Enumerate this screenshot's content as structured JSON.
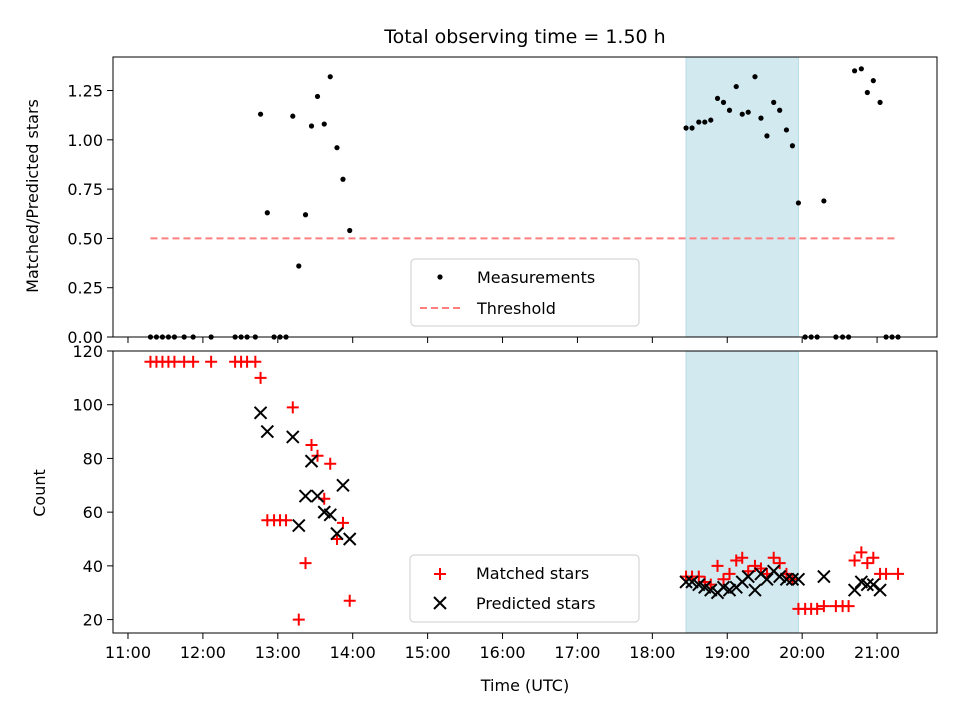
{
  "chart_data": {
    "type": "scatter",
    "title": "Total observing time = 1.50 h",
    "xlabel": "Time (UTC)",
    "x_ticks": [
      "11:00",
      "12:00",
      "13:00",
      "14:00",
      "15:00",
      "16:00",
      "17:00",
      "18:00",
      "19:00",
      "20:00",
      "21:00"
    ],
    "x_range_hours": [
      10.8,
      21.8
    ],
    "highlight_span_hours": [
      18.45,
      19.95
    ],
    "colors": {
      "highlight": "#d2e9f0",
      "matched": "#ff0000",
      "predicted": "#000000",
      "threshold": "#ff7f7f",
      "measurement": "#000000"
    },
    "top": {
      "ylabel": "Matched/Predicted stars",
      "ylim": [
        0,
        1.42
      ],
      "y_ticks": [
        "0.00",
        "0.25",
        "0.50",
        "0.75",
        "1.00",
        "1.25"
      ],
      "threshold": {
        "value": 0.5,
        "x_range_hours": [
          11.3,
          21.28
        ]
      },
      "legend": {
        "measurements": "Measurements",
        "threshold": "Threshold",
        "placement": "lower center"
      },
      "measurements": [
        [
          11.3,
          0
        ],
        [
          11.38,
          0
        ],
        [
          11.46,
          0
        ],
        [
          11.54,
          0
        ],
        [
          11.62,
          0
        ],
        [
          11.75,
          0
        ],
        [
          11.87,
          0
        ],
        [
          12.11,
          0
        ],
        [
          12.43,
          0
        ],
        [
          12.51,
          0
        ],
        [
          12.59,
          0
        ],
        [
          12.7,
          0
        ],
        [
          12.77,
          1.13
        ],
        [
          12.86,
          0.63
        ],
        [
          12.95,
          0
        ],
        [
          13.03,
          0
        ],
        [
          13.11,
          0
        ],
        [
          13.2,
          1.12
        ],
        [
          13.28,
          0.36
        ],
        [
          13.37,
          0.62
        ],
        [
          13.45,
          1.07
        ],
        [
          13.53,
          1.22
        ],
        [
          13.62,
          1.08
        ],
        [
          13.7,
          1.32
        ],
        [
          13.79,
          0.96
        ],
        [
          13.87,
          0.8
        ],
        [
          13.96,
          0.54
        ],
        [
          18.45,
          1.06
        ],
        [
          18.53,
          1.06
        ],
        [
          18.62,
          1.09
        ],
        [
          18.7,
          1.09
        ],
        [
          18.78,
          1.1
        ],
        [
          18.87,
          1.21
        ],
        [
          18.95,
          1.19
        ],
        [
          19.03,
          1.15
        ],
        [
          19.12,
          1.27
        ],
        [
          19.2,
          1.13
        ],
        [
          19.28,
          1.14
        ],
        [
          19.37,
          1.32
        ],
        [
          19.45,
          1.11
        ],
        [
          19.53,
          1.02
        ],
        [
          19.62,
          1.19
        ],
        [
          19.7,
          1.15
        ],
        [
          19.79,
          1.05
        ],
        [
          19.87,
          0.97
        ],
        [
          19.95,
          0.68
        ],
        [
          20.04,
          0
        ],
        [
          20.12,
          0
        ],
        [
          20.2,
          0
        ],
        [
          20.29,
          0.69
        ],
        [
          20.45,
          0
        ],
        [
          20.54,
          0
        ],
        [
          20.62,
          0
        ],
        [
          20.7,
          1.35
        ],
        [
          20.79,
          1.36
        ],
        [
          20.87,
          1.24
        ],
        [
          20.95,
          1.3
        ],
        [
          21.04,
          1.19
        ],
        [
          21.12,
          0
        ],
        [
          21.2,
          0
        ],
        [
          21.28,
          0
        ]
      ]
    },
    "bottom": {
      "ylabel": "Count",
      "ylim": [
        15,
        120
      ],
      "y_ticks": [
        20,
        40,
        60,
        80,
        100,
        120
      ],
      "legend": {
        "matched": "Matched stars",
        "predicted": "Predicted stars",
        "placement": "lower center"
      },
      "matched": [
        [
          11.3,
          116
        ],
        [
          11.38,
          116
        ],
        [
          11.46,
          116
        ],
        [
          11.54,
          116
        ],
        [
          11.62,
          116
        ],
        [
          11.75,
          116
        ],
        [
          11.87,
          116
        ],
        [
          12.11,
          116
        ],
        [
          12.43,
          116
        ],
        [
          12.51,
          116
        ],
        [
          12.59,
          116
        ],
        [
          12.7,
          116
        ],
        [
          12.77,
          110
        ],
        [
          12.86,
          57
        ],
        [
          12.95,
          57
        ],
        [
          13.03,
          57
        ],
        [
          13.11,
          57
        ],
        [
          13.2,
          99
        ],
        [
          13.28,
          20
        ],
        [
          13.37,
          41
        ],
        [
          13.45,
          85
        ],
        [
          13.53,
          81
        ],
        [
          13.62,
          65
        ],
        [
          13.7,
          78
        ],
        [
          13.79,
          50
        ],
        [
          13.87,
          56
        ],
        [
          13.96,
          27
        ],
        [
          18.45,
          36
        ],
        [
          18.53,
          36
        ],
        [
          18.62,
          36
        ],
        [
          18.7,
          34
        ],
        [
          18.78,
          33
        ],
        [
          18.87,
          40
        ],
        [
          18.95,
          35
        ],
        [
          19.03,
          37
        ],
        [
          19.12,
          42
        ],
        [
          19.2,
          43
        ],
        [
          19.28,
          38
        ],
        [
          19.37,
          40
        ],
        [
          19.45,
          39
        ],
        [
          19.53,
          37
        ],
        [
          19.62,
          43
        ],
        [
          19.7,
          41
        ],
        [
          19.79,
          37
        ],
        [
          19.87,
          35
        ],
        [
          19.95,
          24
        ],
        [
          20.04,
          24
        ],
        [
          20.12,
          24
        ],
        [
          20.2,
          24
        ],
        [
          20.29,
          25
        ],
        [
          20.45,
          25
        ],
        [
          20.54,
          25
        ],
        [
          20.62,
          25
        ],
        [
          20.7,
          42
        ],
        [
          20.79,
          45
        ],
        [
          20.87,
          41
        ],
        [
          20.95,
          43
        ],
        [
          21.04,
          37
        ],
        [
          21.12,
          37
        ],
        [
          21.28,
          37
        ]
      ],
      "predicted": [
        [
          12.77,
          97
        ],
        [
          12.86,
          90
        ],
        [
          13.2,
          88
        ],
        [
          13.28,
          55
        ],
        [
          13.37,
          66
        ],
        [
          13.45,
          79
        ],
        [
          13.53,
          66
        ],
        [
          13.62,
          60
        ],
        [
          13.7,
          59
        ],
        [
          13.79,
          52
        ],
        [
          13.87,
          70
        ],
        [
          13.96,
          50
        ],
        [
          18.45,
          34
        ],
        [
          18.53,
          34
        ],
        [
          18.62,
          33
        ],
        [
          18.7,
          32
        ],
        [
          18.78,
          31
        ],
        [
          18.87,
          30
        ],
        [
          18.95,
          32
        ],
        [
          19.03,
          31
        ],
        [
          19.12,
          32
        ],
        [
          19.2,
          34
        ],
        [
          19.28,
          36
        ],
        [
          19.37,
          31
        ],
        [
          19.45,
          37
        ],
        [
          19.53,
          35
        ],
        [
          19.62,
          38
        ],
        [
          19.7,
          36
        ],
        [
          19.79,
          35
        ],
        [
          19.87,
          35
        ],
        [
          19.95,
          35
        ],
        [
          20.29,
          36
        ],
        [
          20.7,
          31
        ],
        [
          20.79,
          34
        ],
        [
          20.87,
          33
        ],
        [
          20.95,
          33
        ],
        [
          21.04,
          31
        ]
      ]
    }
  }
}
